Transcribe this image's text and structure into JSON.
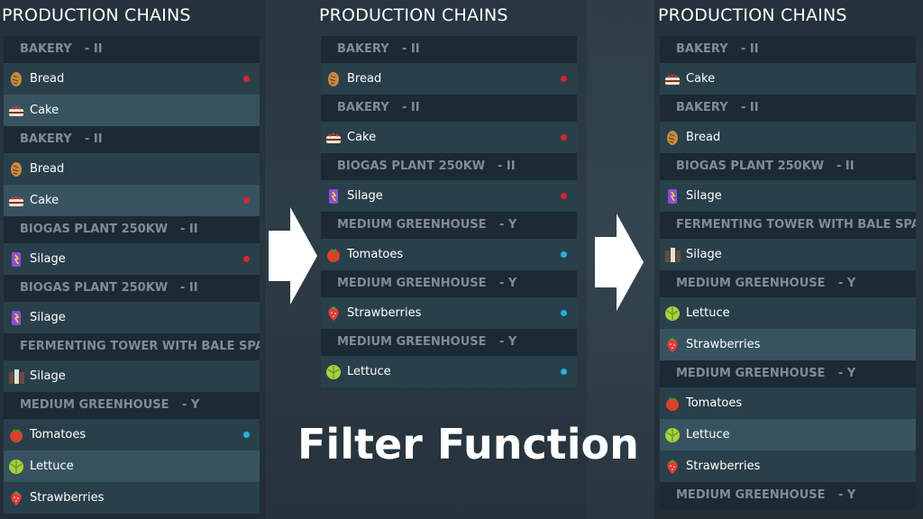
{
  "caption": "Filter Function",
  "panels": [
    {
      "title": "PRODUCTION CHAINS",
      "groups": [
        {
          "name": "BAKERY",
          "level": "- II",
          "items": [
            {
              "label": "Bread",
              "icon": "bread",
              "dot": "#d8252e"
            },
            {
              "label": "Cake",
              "icon": "cake"
            }
          ]
        },
        {
          "name": "BAKERY",
          "level": "- II",
          "items": [
            {
              "label": "Bread",
              "icon": "bread"
            },
            {
              "label": "Cake",
              "icon": "cake",
              "dot": "#d8252e"
            }
          ]
        },
        {
          "name": "BIOGAS PLANT 250KW",
          "level": "- II",
          "items": [
            {
              "label": "Silage",
              "icon": "silage",
              "dot": "#d8252e"
            }
          ]
        },
        {
          "name": "BIOGAS PLANT 250KW",
          "level": "- II",
          "items": [
            {
              "label": "Silage",
              "icon": "silage"
            }
          ]
        },
        {
          "name": "FERMENTING TOWER WITH BALE SPA...",
          "items": [
            {
              "label": "Silage",
              "icon": "tower"
            }
          ]
        },
        {
          "name": "MEDIUM GREENHOUSE",
          "level": "- Y",
          "items": [
            {
              "label": "Tomatoes",
              "icon": "tomato",
              "dot": "#2aaee0"
            },
            {
              "label": "Lettuce",
              "icon": "lettuce"
            },
            {
              "label": "Strawberries",
              "icon": "strawberry"
            }
          ]
        }
      ]
    },
    {
      "title": "PRODUCTION CHAINS",
      "groups": [
        {
          "name": "BAKERY",
          "level": "- II",
          "items": [
            {
              "label": "Bread",
              "icon": "bread",
              "dot": "#d8252e"
            }
          ]
        },
        {
          "name": "BAKERY",
          "level": "- II",
          "items": [
            {
              "label": "Cake",
              "icon": "cake",
              "dot": "#d8252e"
            }
          ]
        },
        {
          "name": "BIOGAS PLANT 250KW",
          "level": "- II",
          "items": [
            {
              "label": "Silage",
              "icon": "silage",
              "dot": "#d8252e"
            }
          ]
        },
        {
          "name": "MEDIUM GREENHOUSE",
          "level": "- Y",
          "items": [
            {
              "label": "Tomatoes",
              "icon": "tomato",
              "dot": "#2aaee0"
            }
          ]
        },
        {
          "name": "MEDIUM GREENHOUSE",
          "level": "- Y",
          "items": [
            {
              "label": "Strawberries",
              "icon": "strawberry",
              "dot": "#2aaee0"
            }
          ]
        },
        {
          "name": "MEDIUM GREENHOUSE",
          "level": "- Y",
          "items": [
            {
              "label": "Lettuce",
              "icon": "lettuce",
              "dot": "#2aaee0"
            }
          ]
        }
      ]
    },
    {
      "title": "PRODUCTION CHAINS",
      "groups": [
        {
          "name": "BAKERY",
          "level": "- II",
          "items": [
            {
              "label": "Cake",
              "icon": "cake"
            }
          ]
        },
        {
          "name": "BAKERY",
          "level": "- II",
          "items": [
            {
              "label": "Bread",
              "icon": "bread"
            }
          ]
        },
        {
          "name": "BIOGAS PLANT 250KW",
          "level": "- II",
          "items": [
            {
              "label": "Silage",
              "icon": "silage"
            }
          ]
        },
        {
          "name": "FERMENTING TOWER WITH BALE SPA...",
          "items": [
            {
              "label": "Silage",
              "icon": "tower"
            }
          ]
        },
        {
          "name": "MEDIUM GREENHOUSE",
          "level": "- Y",
          "items": [
            {
              "label": "Lettuce",
              "icon": "lettuce"
            },
            {
              "label": "Strawberries",
              "icon": "strawberry"
            }
          ]
        },
        {
          "name": "MEDIUM GREENHOUSE",
          "level": "- Y",
          "items": [
            {
              "label": "Tomatoes",
              "icon": "tomato"
            },
            {
              "label": "Lettuce",
              "icon": "lettuce"
            },
            {
              "label": "Strawberries",
              "icon": "strawberry"
            }
          ]
        },
        {
          "name": "MEDIUM GREENHOUSE",
          "level": "- Y",
          "items": []
        }
      ]
    }
  ]
}
